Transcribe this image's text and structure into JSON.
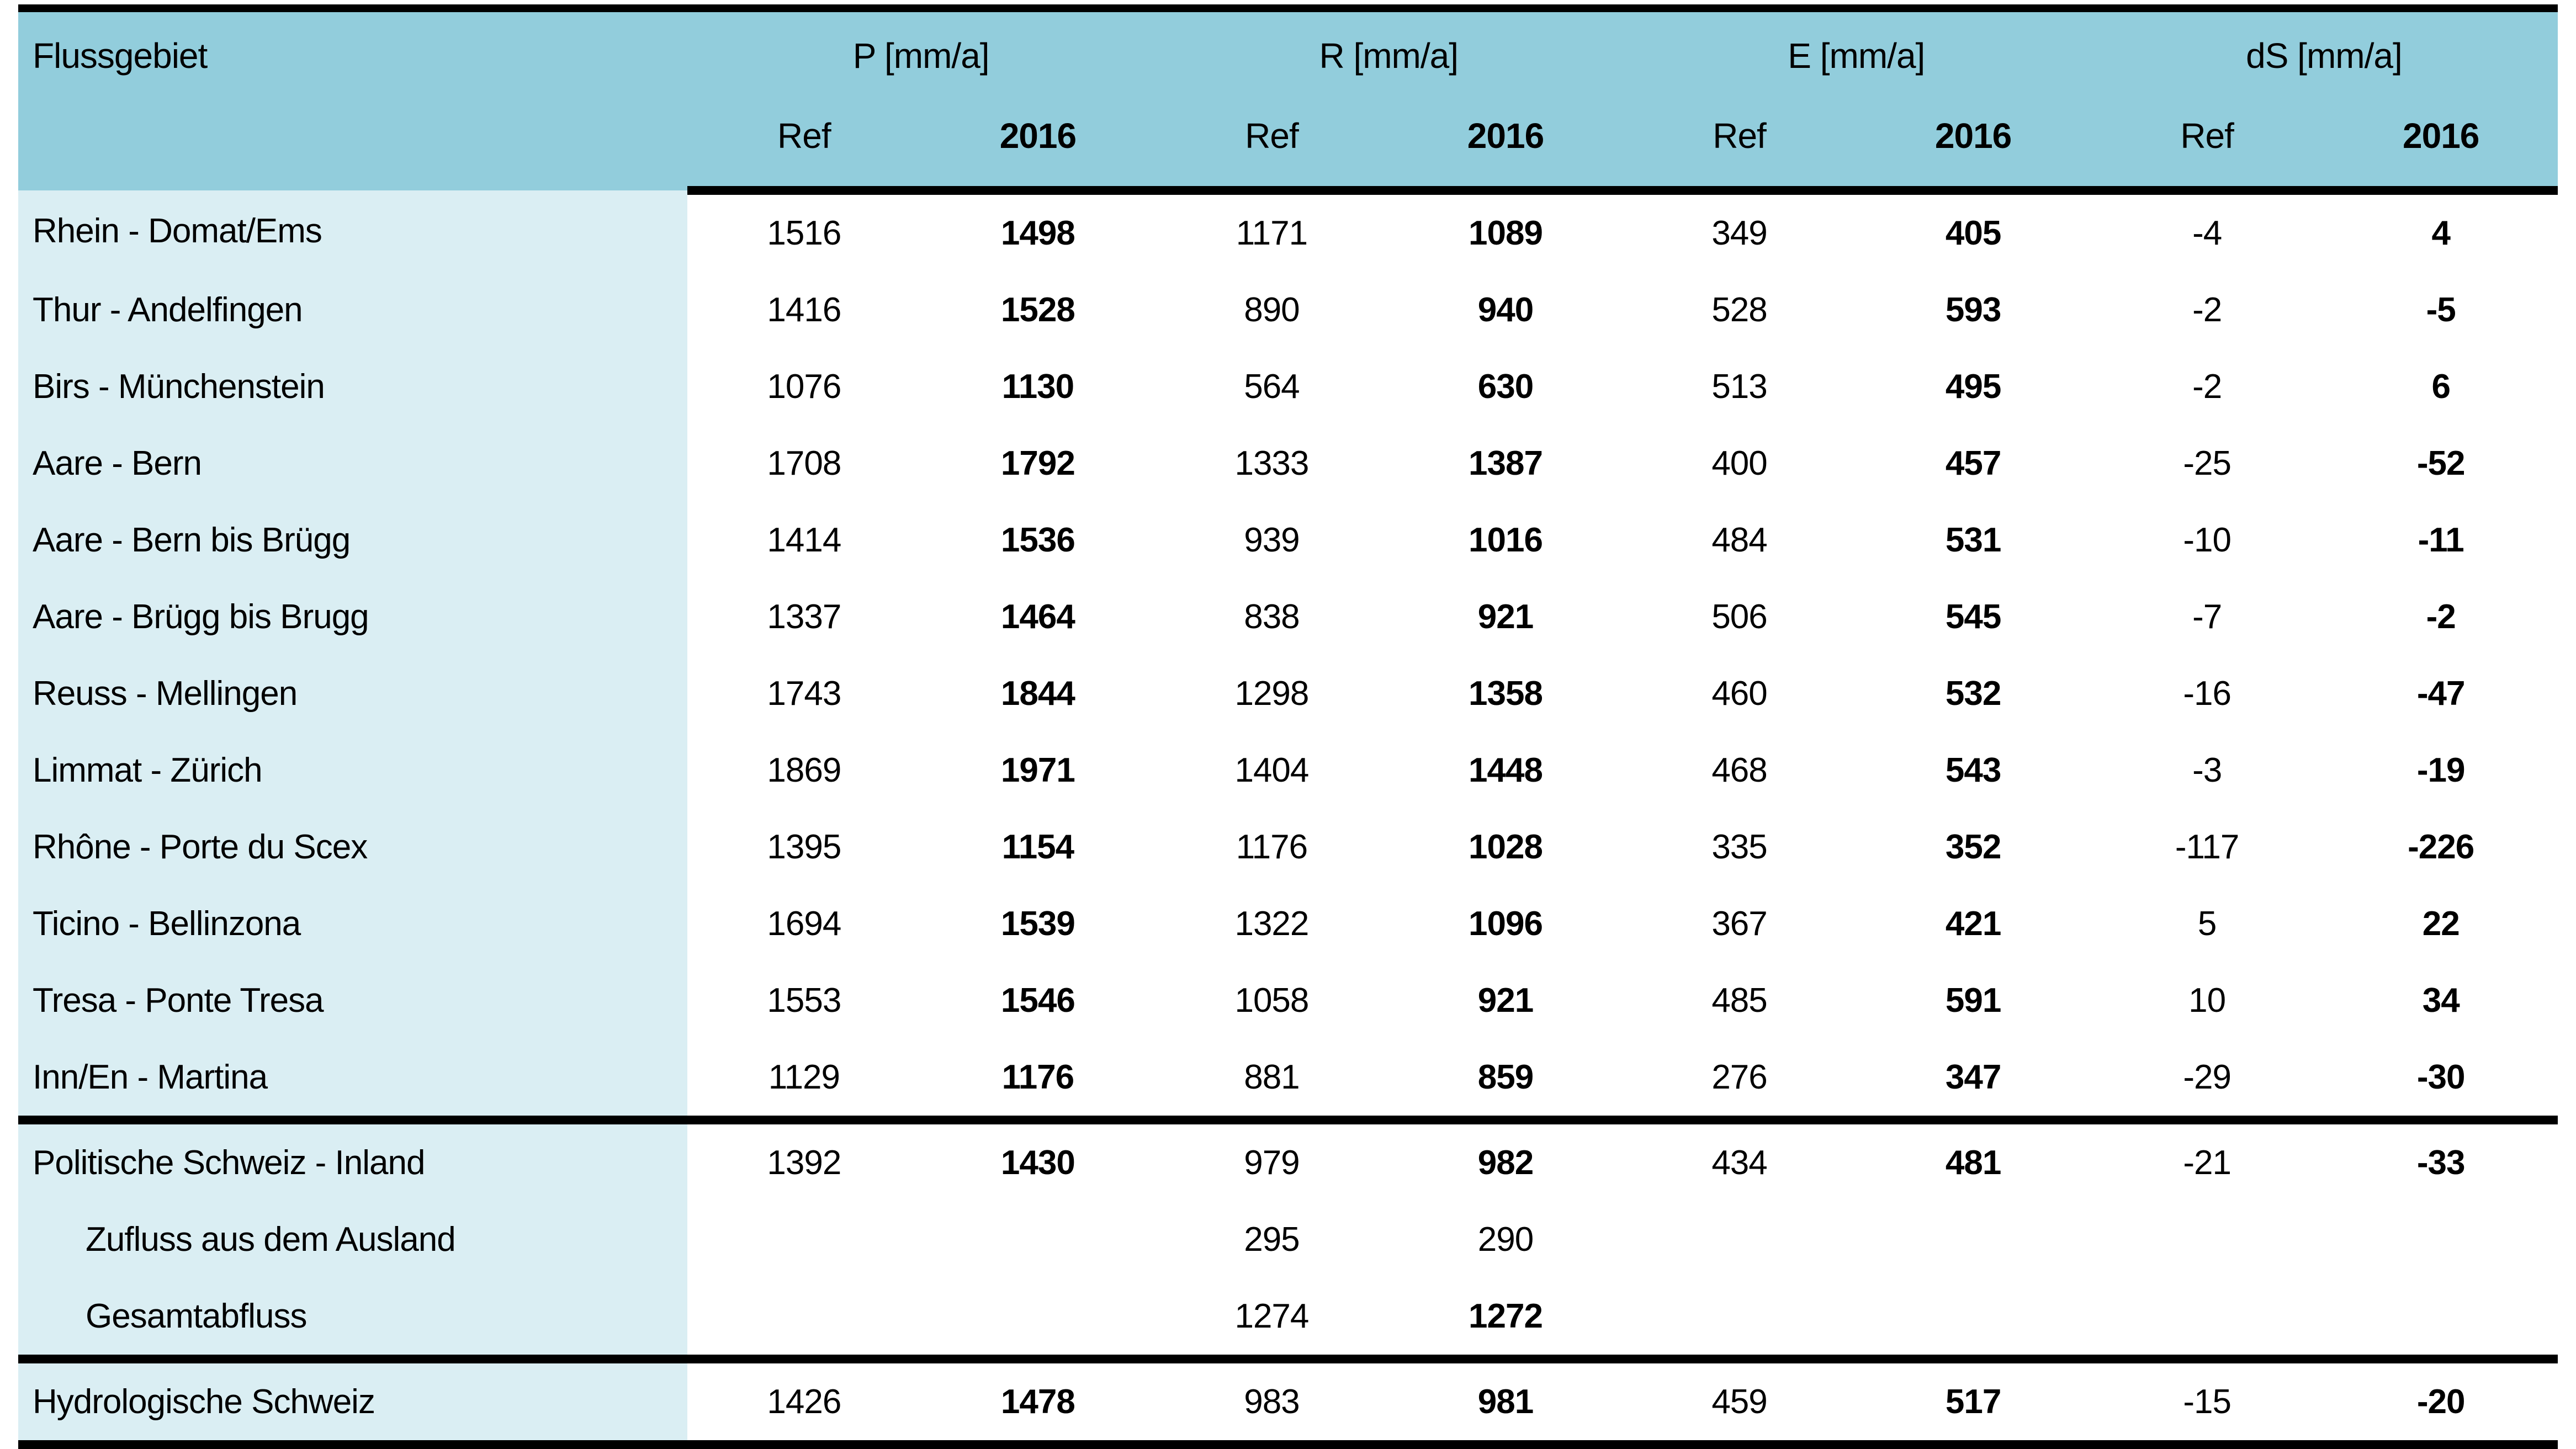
{
  "colors": {
    "header_bg": "#92CDDC",
    "name_col_bg": "#DAEEF3",
    "border": "#000000",
    "text": "#000000"
  },
  "table": {
    "corner_label": "Flussgebiet",
    "groups": [
      {
        "label": "P [mm/a]"
      },
      {
        "label": "R [mm/a]"
      },
      {
        "label": "E [mm/a]"
      },
      {
        "label": "dS [mm/a]"
      }
    ],
    "sub_ref": "Ref",
    "sub_2016": "2016",
    "column_keys": [
      "p-ref",
      "p-2016",
      "r-ref",
      "r-2016",
      "e-ref",
      "e-2016",
      "ds-ref",
      "ds-2016"
    ],
    "rows": [
      {
        "name": "Rhein - Domat/Ems",
        "indent": false,
        "sep_before": false,
        "bold_2016": true,
        "values": [
          "1516",
          "1498",
          "1171",
          "1089",
          "349",
          "405",
          "-4",
          "4"
        ]
      },
      {
        "name": "Thur - Andelfingen",
        "indent": false,
        "sep_before": false,
        "bold_2016": true,
        "values": [
          "1416",
          "1528",
          "890",
          "940",
          "528",
          "593",
          "-2",
          "-5"
        ]
      },
      {
        "name": "Birs - Münchenstein",
        "indent": false,
        "sep_before": false,
        "bold_2016": true,
        "values": [
          "1076",
          "1130",
          "564",
          "630",
          "513",
          "495",
          "-2",
          "6"
        ]
      },
      {
        "name": "Aare - Bern",
        "indent": false,
        "sep_before": false,
        "bold_2016": true,
        "values": [
          "1708",
          "1792",
          "1333",
          "1387",
          "400",
          "457",
          "-25",
          "-52"
        ]
      },
      {
        "name": "Aare - Bern bis Brügg",
        "indent": false,
        "sep_before": false,
        "bold_2016": true,
        "values": [
          "1414",
          "1536",
          "939",
          "1016",
          "484",
          "531",
          "-10",
          "-11"
        ]
      },
      {
        "name": "Aare - Brügg bis Brugg",
        "indent": false,
        "sep_before": false,
        "bold_2016": true,
        "values": [
          "1337",
          "1464",
          "838",
          "921",
          "506",
          "545",
          "-7",
          "-2"
        ]
      },
      {
        "name": "Reuss - Mellingen",
        "indent": false,
        "sep_before": false,
        "bold_2016": true,
        "values": [
          "1743",
          "1844",
          "1298",
          "1358",
          "460",
          "532",
          "-16",
          "-47"
        ]
      },
      {
        "name": "Limmat - Zürich",
        "indent": false,
        "sep_before": false,
        "bold_2016": true,
        "values": [
          "1869",
          "1971",
          "1404",
          "1448",
          "468",
          "543",
          "-3",
          "-19"
        ]
      },
      {
        "name": "Rhône - Porte du Scex",
        "indent": false,
        "sep_before": false,
        "bold_2016": true,
        "values": [
          "1395",
          "1154",
          "1176",
          "1028",
          "335",
          "352",
          "-117",
          "-226"
        ]
      },
      {
        "name": "Ticino - Bellinzona",
        "indent": false,
        "sep_before": false,
        "bold_2016": true,
        "values": [
          "1694",
          "1539",
          "1322",
          "1096",
          "367",
          "421",
          "5",
          "22"
        ]
      },
      {
        "name": "Tresa - Ponte Tresa",
        "indent": false,
        "sep_before": false,
        "bold_2016": true,
        "values": [
          "1553",
          "1546",
          "1058",
          "921",
          "485",
          "591",
          "10",
          "34"
        ]
      },
      {
        "name": "Inn/En - Martina",
        "indent": false,
        "sep_before": false,
        "bold_2016": true,
        "values": [
          "1129",
          "1176",
          "881",
          "859",
          "276",
          "347",
          "-29",
          "-30"
        ]
      },
      {
        "name": "Politische Schweiz - Inland",
        "indent": false,
        "sep_before": true,
        "bold_2016": true,
        "values": [
          "1392",
          "1430",
          "979",
          "982",
          "434",
          "481",
          "-21",
          "-33"
        ]
      },
      {
        "name": "Zufluss aus dem Ausland",
        "indent": true,
        "sep_before": false,
        "bold_2016": false,
        "values": [
          "",
          "",
          "295",
          "290",
          "",
          "",
          "",
          ""
        ]
      },
      {
        "name": "Gesamtabfluss",
        "indent": true,
        "sep_before": false,
        "bold_2016": true,
        "values": [
          "",
          "",
          "1274",
          "1272",
          "",
          "",
          "",
          ""
        ]
      },
      {
        "name": "Hydrologische Schweiz",
        "indent": false,
        "sep_before": true,
        "bold_2016": true,
        "values": [
          "1426",
          "1478",
          "983",
          "981",
          "459",
          "517",
          "-15",
          "-20"
        ]
      }
    ]
  }
}
